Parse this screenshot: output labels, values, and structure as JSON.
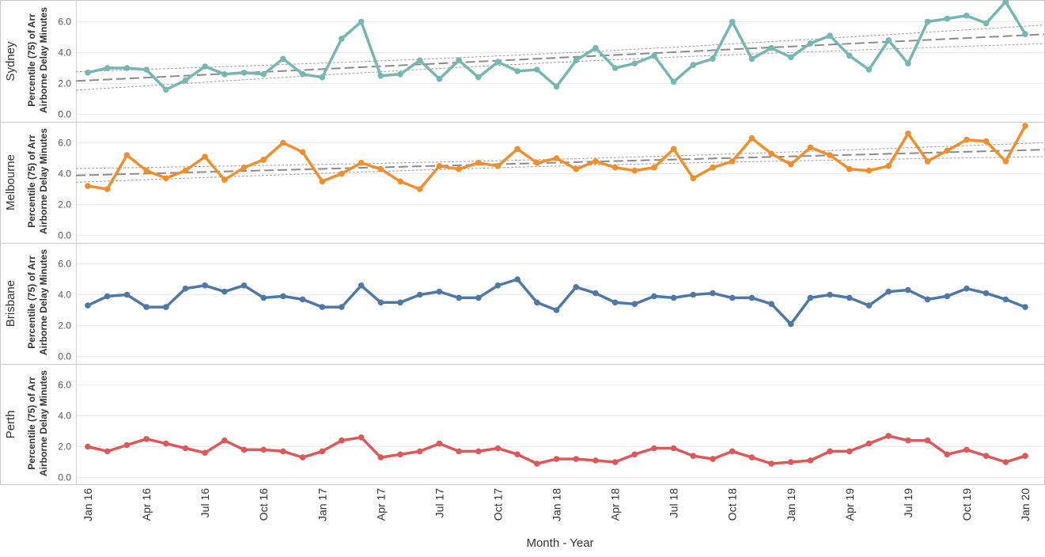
{
  "chart_data": {
    "type": "line",
    "xlabel": "Month - Year",
    "ylabel": "Percentile (75) of Arr Airborne Delay Minutes",
    "ylabel_lines": [
      "Percentile (75) of Arr",
      "Airborne Delay Minutes"
    ],
    "ylim": [
      0,
      7.5
    ],
    "yticks": [
      "0.0",
      "2.0",
      "4.0",
      "6.0"
    ],
    "x_tick_labels": [
      "Jan 16",
      "Apr 16",
      "Jul 16",
      "Oct 16",
      "Jan 17",
      "Apr 17",
      "Jul 17",
      "Oct 17",
      "Jan 18",
      "Apr 18",
      "Jul 18",
      "Oct 18",
      "Jan 19",
      "Apr 19",
      "Jul 19",
      "Oct 19",
      "Jan 20"
    ],
    "grid": "horizontal",
    "legend": "none",
    "panels": [
      {
        "name": "Sydney",
        "color": "#76b7b2",
        "trend_line": true,
        "values": [
          2.7,
          3.0,
          3.0,
          2.9,
          1.6,
          2.2,
          3.1,
          2.6,
          2.7,
          2.6,
          3.6,
          2.6,
          2.4,
          4.9,
          6.0,
          2.5,
          2.6,
          3.5,
          2.3,
          3.5,
          2.4,
          3.4,
          2.8,
          2.9,
          1.8,
          3.5,
          4.3,
          3.0,
          3.3,
          3.8,
          2.1,
          3.2,
          3.6,
          6.0,
          3.6,
          4.3,
          3.7,
          4.6,
          5.1,
          3.8,
          2.9,
          4.8,
          3.3,
          6.0,
          6.2,
          6.4,
          5.9,
          7.3,
          5.2
        ]
      },
      {
        "name": "Melbourne",
        "color": "#f28e2b",
        "trend_line": true,
        "values": [
          3.2,
          3.0,
          5.2,
          4.2,
          3.7,
          4.2,
          5.1,
          3.6,
          4.4,
          4.9,
          6.0,
          5.4,
          3.5,
          4.0,
          4.7,
          4.3,
          3.5,
          3.0,
          4.5,
          4.3,
          4.7,
          4.5,
          5.6,
          4.7,
          5.0,
          4.3,
          4.8,
          4.4,
          4.2,
          4.4,
          5.6,
          3.7,
          4.4,
          4.8,
          6.3,
          5.3,
          4.6,
          5.7,
          5.2,
          4.3,
          4.2,
          4.5,
          6.6,
          4.8,
          5.5,
          6.2,
          6.1,
          4.8,
          7.1
        ]
      },
      {
        "name": "Brisbane",
        "color": "#4e79a7",
        "trend_line": false,
        "values": [
          3.3,
          3.9,
          4.0,
          3.2,
          3.2,
          4.4,
          4.6,
          4.2,
          4.6,
          3.8,
          3.9,
          3.7,
          3.2,
          3.2,
          4.6,
          3.5,
          3.5,
          4.0,
          4.2,
          3.8,
          3.8,
          4.6,
          5.0,
          3.5,
          3.0,
          4.5,
          4.1,
          3.5,
          3.4,
          3.9,
          3.8,
          4.0,
          4.1,
          3.8,
          3.8,
          3.4,
          2.1,
          3.8,
          4.0,
          3.8,
          3.3,
          4.2,
          4.3,
          3.7,
          3.9,
          4.4,
          4.1,
          3.7,
          3.2
        ]
      },
      {
        "name": "Perth",
        "color": "#e15759",
        "trend_line": false,
        "values": [
          2.0,
          1.7,
          2.1,
          2.5,
          2.2,
          1.9,
          1.6,
          2.4,
          1.8,
          1.8,
          1.7,
          1.3,
          1.7,
          2.4,
          2.6,
          1.3,
          1.5,
          1.7,
          2.2,
          1.7,
          1.7,
          1.9,
          1.5,
          0.9,
          1.2,
          1.2,
          1.1,
          1.0,
          1.5,
          1.9,
          1.9,
          1.4,
          1.2,
          1.7,
          1.3,
          0.9,
          1.0,
          1.1,
          1.7,
          1.7,
          2.2,
          2.7,
          2.4,
          2.4,
          1.5,
          1.8,
          1.4,
          1.0,
          1.4
        ]
      }
    ]
  }
}
